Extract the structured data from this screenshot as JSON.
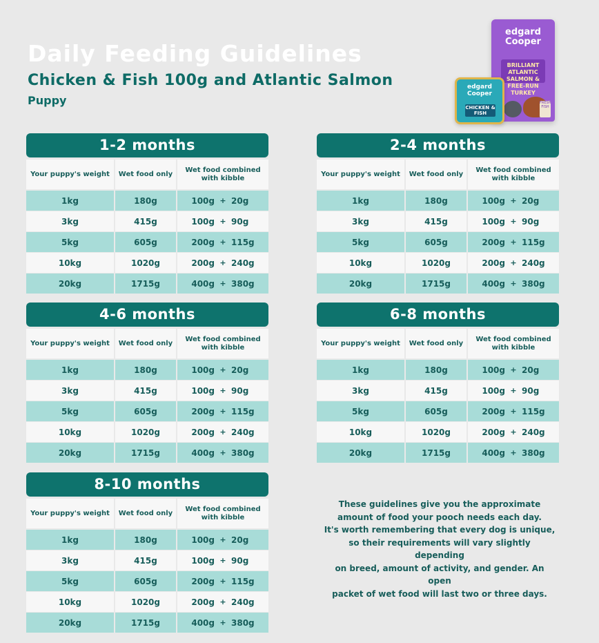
{
  "title": "Daily Feeding Guidelines",
  "subtitle": "Chicken & Fish 100g and Atlantic Salmon",
  "variant": "Puppy",
  "products": {
    "bag_brand": "edgard Cooper",
    "bag_label": "BRILLIANT ATLANTIC SALMON & FREE-RUN TURKEY",
    "tray_brand": "edgard Cooper",
    "tray_label": "CHICKEN & FISH",
    "pack_badge": "FRESH FISH"
  },
  "table_headers": {
    "weight": "Your puppy's weight",
    "wet_only": "Wet food only",
    "combined": "Wet food combined with kibble"
  },
  "cards": [
    {
      "title": "1-2 months",
      "rows": [
        {
          "weight": "1kg",
          "wet": "180g",
          "combo_wet": "100g",
          "plus": "+",
          "combo_kibble": "20g"
        },
        {
          "weight": "3kg",
          "wet": "415g",
          "combo_wet": "100g",
          "plus": "+",
          "combo_kibble": "90g"
        },
        {
          "weight": "5kg",
          "wet": "605g",
          "combo_wet": "200g",
          "plus": "+",
          "combo_kibble": "115g"
        },
        {
          "weight": "10kg",
          "wet": "1020g",
          "combo_wet": "200g",
          "plus": "+",
          "combo_kibble": "240g"
        },
        {
          "weight": "20kg",
          "wet": "1715g",
          "combo_wet": "400g",
          "plus": "+",
          "combo_kibble": "380g"
        }
      ]
    },
    {
      "title": "2-4 months",
      "rows": [
        {
          "weight": "1kg",
          "wet": "180g",
          "combo_wet": "100g",
          "plus": "+",
          "combo_kibble": "20g"
        },
        {
          "weight": "3kg",
          "wet": "415g",
          "combo_wet": "100g",
          "plus": "+",
          "combo_kibble": "90g"
        },
        {
          "weight": "5kg",
          "wet": "605g",
          "combo_wet": "200g",
          "plus": "+",
          "combo_kibble": "115g"
        },
        {
          "weight": "10kg",
          "wet": "1020g",
          "combo_wet": "200g",
          "plus": "+",
          "combo_kibble": "240g"
        },
        {
          "weight": "20kg",
          "wet": "1715g",
          "combo_wet": "400g",
          "plus": "+",
          "combo_kibble": "380g"
        }
      ]
    },
    {
      "title": "4-6 months",
      "rows": [
        {
          "weight": "1kg",
          "wet": "180g",
          "combo_wet": "100g",
          "plus": "+",
          "combo_kibble": "20g"
        },
        {
          "weight": "3kg",
          "wet": "415g",
          "combo_wet": "100g",
          "plus": "+",
          "combo_kibble": "90g"
        },
        {
          "weight": "5kg",
          "wet": "605g",
          "combo_wet": "200g",
          "plus": "+",
          "combo_kibble": "115g"
        },
        {
          "weight": "10kg",
          "wet": "1020g",
          "combo_wet": "200g",
          "plus": "+",
          "combo_kibble": "240g"
        },
        {
          "weight": "20kg",
          "wet": "1715g",
          "combo_wet": "400g",
          "plus": "+",
          "combo_kibble": "380g"
        }
      ]
    },
    {
      "title": "6-8 months",
      "rows": [
        {
          "weight": "1kg",
          "wet": "180g",
          "combo_wet": "100g",
          "plus": "+",
          "combo_kibble": "20g"
        },
        {
          "weight": "3kg",
          "wet": "415g",
          "combo_wet": "100g",
          "plus": "+",
          "combo_kibble": "90g"
        },
        {
          "weight": "5kg",
          "wet": "605g",
          "combo_wet": "200g",
          "plus": "+",
          "combo_kibble": "115g"
        },
        {
          "weight": "10kg",
          "wet": "1020g",
          "combo_wet": "200g",
          "plus": "+",
          "combo_kibble": "240g"
        },
        {
          "weight": "20kg",
          "wet": "1715g",
          "combo_wet": "400g",
          "plus": "+",
          "combo_kibble": "380g"
        }
      ]
    },
    {
      "title": "8-10 months",
      "rows": [
        {
          "weight": "1kg",
          "wet": "180g",
          "combo_wet": "100g",
          "plus": "+",
          "combo_kibble": "20g"
        },
        {
          "weight": "3kg",
          "wet": "415g",
          "combo_wet": "100g",
          "plus": "+",
          "combo_kibble": "90g"
        },
        {
          "weight": "5kg",
          "wet": "605g",
          "combo_wet": "200g",
          "plus": "+",
          "combo_kibble": "115g"
        },
        {
          "weight": "10kg",
          "wet": "1020g",
          "combo_wet": "200g",
          "plus": "+",
          "combo_kibble": "240g"
        },
        {
          "weight": "20kg",
          "wet": "1715g",
          "combo_wet": "400g",
          "plus": "+",
          "combo_kibble": "380g"
        }
      ]
    }
  ],
  "note_lines": [
    "These guidelines give you the approximate",
    "amount of food your pooch needs each day.",
    "It's worth remembering that every dog is unique,",
    "so their requirements will vary slightly depending",
    "on breed, amount of activity, and gender. An open",
    "packet of wet food will last two or three days."
  ],
  "colors": {
    "background": "#e9e9e9",
    "teal_header": "#0e736d",
    "teal_text": "#175d5a",
    "light_teal_row": "#a8dcd8",
    "white_row": "#f7f7f7"
  }
}
